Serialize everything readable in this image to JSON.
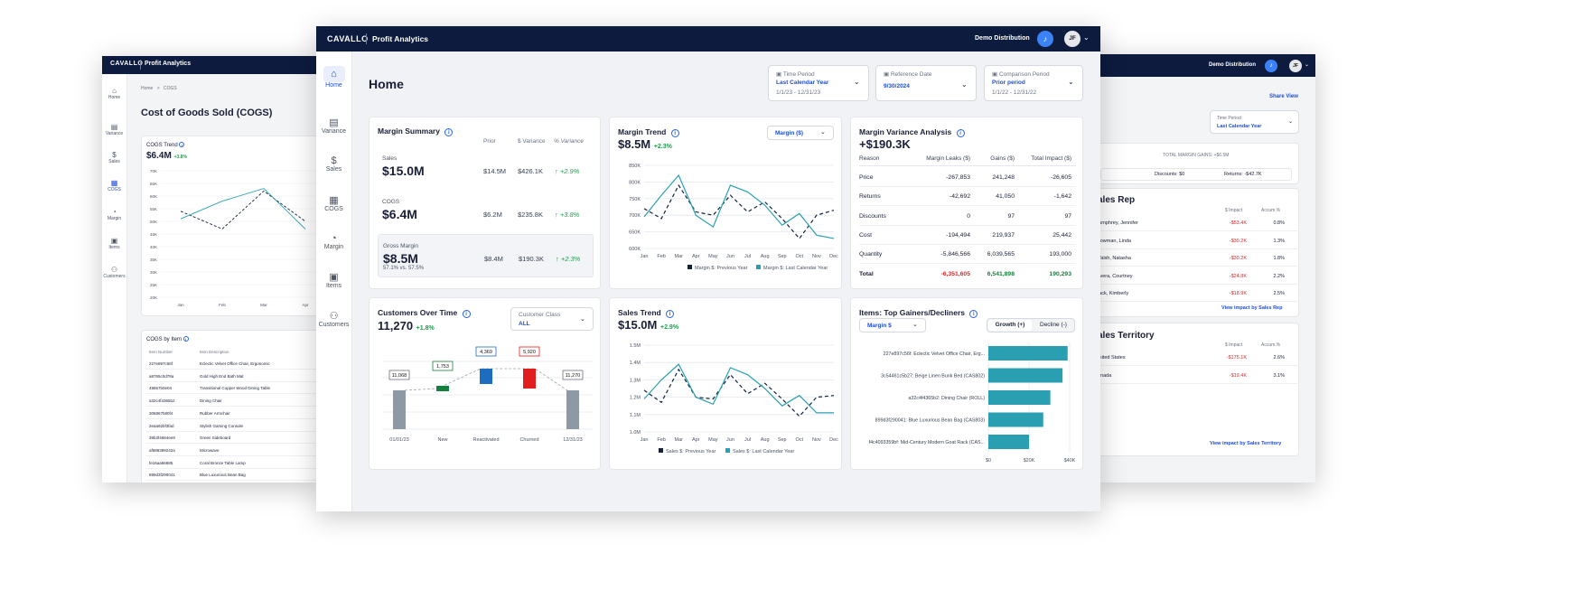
{
  "brand": {
    "logo": "CAVALLO",
    "app": "Profit Analytics",
    "company": "Demo Distribution",
    "user_initials": "JF"
  },
  "nav": {
    "home": "Home",
    "variance": "Variance",
    "sales": "Sales",
    "cogs": "COGS",
    "margin": "Margin",
    "items": "Items",
    "customers": "Customers"
  },
  "left": {
    "breadcrumb_home": "Home",
    "breadcrumb_sep": ">",
    "breadcrumb_page": "COGS",
    "title": "Cost of Goods Sold (COGS)",
    "trend": {
      "title": "COGS Trend",
      "value": "$6.4M",
      "change": "+3.8%",
      "y_ticks": [
        "70K",
        "65K",
        "60K",
        "55K",
        "50K",
        "45K",
        "40K",
        "35K",
        "30K",
        "25K",
        "20K"
      ],
      "x_ticks": [
        "Jan",
        "Feb",
        "Mar",
        "Apr"
      ]
    },
    "by_item": {
      "title": "COGS by Item",
      "col_num": "Item Number",
      "col_desc": "Item Description",
      "rows": [
        {
          "num": "227e897c56f",
          "desc": "Eclectic Velvet Office Chair, Ergonomic"
        },
        {
          "num": "a8765c0d78a",
          "desc": "Gold High End Bath Mat"
        },
        {
          "num": "49667b0e04",
          "desc": "Transitional Copper Wood Dining Table"
        },
        {
          "num": "a32c4f4365b2",
          "desc": "Dining Chair"
        },
        {
          "num": "306867b80f4",
          "desc": "Rubber Armchair"
        },
        {
          "num": "2eaa92bf3fad",
          "desc": "Stylish Gaming Console"
        },
        {
          "num": "39b3f4684ee9",
          "desc": "Green Sideboard"
        },
        {
          "num": "af688389242a",
          "desc": "Microwave"
        },
        {
          "num": "fe16aa56685",
          "desc": "Coral Bronze Table Lamp"
        },
        {
          "num": "899d3f290041",
          "desc": "Blue Luxurious Bean Bag"
        }
      ]
    }
  },
  "main": {
    "page_title": "Home",
    "time_period": {
      "label": "Time Period",
      "value": "Last Calendar Year",
      "range": "1/1/23 - 12/31/23"
    },
    "reference_date": {
      "label": "Reference Date",
      "value": "9/30/2024"
    },
    "comparison": {
      "label": "Comparison Period",
      "value": "Prior period",
      "range": "1/1/22 - 12/31/22"
    },
    "margin_summary": {
      "title": "Margin Summary",
      "col_prior": "Prior",
      "col_var": "$ Variance",
      "col_pct": "% Variance",
      "rows": [
        {
          "label": "Sales",
          "value": "$15.0M",
          "prior": "$14.5M",
          "var": "$426.1K",
          "pct": "+2.9%"
        },
        {
          "label": "COGS",
          "value": "$6.4M",
          "prior": "$6.2M",
          "var": "$235.8K",
          "pct": "+3.8%"
        },
        {
          "label": "Gross Margin",
          "value": "$8.5M",
          "sub": "57.1% vs. 57.5%",
          "prior": "$8.4M",
          "var": "$190.3K",
          "pct": "+2.3%"
        }
      ]
    },
    "margin_trend": {
      "title": "Margin Trend",
      "value": "$8.5M",
      "change": "+2.3%",
      "select": "Margin ($)",
      "legend_prev": "Margin $: Previous Year",
      "legend_cur": "Margin $: Last Calendar Year"
    },
    "variance": {
      "title": "Margin Variance Analysis",
      "value": "+$190.3K",
      "cols": [
        "Reason",
        "Margin Leaks ($)",
        "Gains ($)",
        "Total Impact ($)"
      ],
      "rows": [
        {
          "reason": "Price",
          "leaks": "-267,853",
          "gains": "241,248",
          "total": "-26,605"
        },
        {
          "reason": "Returns",
          "leaks": "-42,692",
          "gains": "41,050",
          "total": "-1,642"
        },
        {
          "reason": "Discounts",
          "leaks": "0",
          "gains": "97",
          "total": "97"
        },
        {
          "reason": "Cost",
          "leaks": "-194,494",
          "gains": "219,937",
          "total": "25,442"
        },
        {
          "reason": "Quantity",
          "leaks": "-5,846,566",
          "gains": "6,039,565",
          "total": "193,000"
        },
        {
          "reason": "Total",
          "leaks": "-6,351,605",
          "gains": "6,541,898",
          "total": "190,293"
        }
      ]
    },
    "customers": {
      "title": "Customers Over Time",
      "value": "11,270",
      "change": "+1.8%",
      "class_label": "Customer Class",
      "class_value": "ALL",
      "bars": [
        {
          "label": "01/01/23",
          "value": "11,068"
        },
        {
          "label": "New",
          "value": "1,753"
        },
        {
          "label": "Reactivated",
          "value": "4,369"
        },
        {
          "label": "Churned",
          "value": "5,920"
        },
        {
          "label": "12/31/23",
          "value": "11,270"
        }
      ]
    },
    "sales_trend": {
      "title": "Sales Trend",
      "value": "$15.0M",
      "change": "+2.9%",
      "legend_prev": "Sales $: Previous Year",
      "legend_cur": "Sales $: Last Calendar Year"
    },
    "items": {
      "title": "Items: Top Gainers/Decliners",
      "select": "Margin $",
      "tab_growth": "Growth (+)",
      "tab_decline": "Decline (-)",
      "rows": [
        {
          "label": "227e897c56f: Eclectic Velvet Office Chair, Erg...",
          "value": 39
        },
        {
          "label": "3c54461c5b27: Beige Linen Bunk Bed (CAS802)",
          "value": 36.5
        },
        {
          "label": "a32c4f4365b2: Dining Chair (ROLL)",
          "value": 30.5
        },
        {
          "label": "899d3f290041: Blue Luxurious Bean Bag (CAS803)",
          "value": 27
        },
        {
          "label": "f4c4093359bf: Mid-Century Modern Goat Rack (CAS...",
          "value": 20
        }
      ],
      "x_ticks": [
        "$0",
        "$20K",
        "$40K"
      ]
    }
  },
  "right": {
    "share_view": "Share View",
    "time_period": {
      "label": "Time Period",
      "value": "Last Calendar Year"
    },
    "total_gains": "TOTAL MARGIN GAINS: +$6.5M",
    "discounts": "Discounts: $0",
    "returns": "Returns: -$42.7K",
    "sales_rep": {
      "title": "ales Rep",
      "col_impact": "$ Impact",
      "col_accum": "Accum.%",
      "rows": [
        {
          "name": "lumphrey, Jennifer",
          "impact": "-$53.4K",
          "accum": "0.8%"
        },
        {
          "name": "Jowman, Linda",
          "impact": "-$30.2K",
          "accum": "1.3%"
        },
        {
          "name": "Valsh, Natasha",
          "impact": "-$30.2K",
          "accum": "1.8%"
        },
        {
          "name": "livera, Courtney",
          "impact": "-$24.8K",
          "accum": "2.2%"
        },
        {
          "name": "lack, Kimberly",
          "impact": "-$18.9K",
          "accum": "2.5%"
        }
      ],
      "link": "View impact by Sales Rep"
    },
    "territory": {
      "title": "ales Territory",
      "col_impact": "$ Impact",
      "col_accum": "Accum.%",
      "rows": [
        {
          "name": "Inited States",
          "impact": "-$175.1K",
          "accum": "2.6%"
        },
        {
          "name": "anada",
          "impact": "-$19.4K",
          "accum": "3.1%"
        }
      ],
      "link": "View impact by Sales Territory"
    }
  },
  "chart_data": [
    {
      "type": "line",
      "title": "COGS Trend",
      "x": [
        "Jan",
        "Feb",
        "Mar",
        "Apr"
      ],
      "series": [
        {
          "values": [
            51000,
            58000,
            63000,
            47000
          ]
        },
        {
          "values": [
            54000,
            47000,
            62000,
            50000
          ]
        }
      ]
    },
    {
      "type": "line",
      "title": "Margin Trend",
      "x": [
        "Jan",
        "Feb",
        "Mar",
        "Apr",
        "May",
        "Jun",
        "Jul",
        "Aug",
        "Sep",
        "Oct",
        "Nov",
        "Dec"
      ],
      "ylim": [
        600000,
        850000
      ],
      "y_ticks": [
        "850K",
        "800K",
        "750K",
        "700K",
        "650K",
        "600K"
      ],
      "series": [
        {
          "name": "Margin $: Previous Year",
          "values": [
            720000,
            690000,
            790000,
            710000,
            700000,
            760000,
            710000,
            740000,
            690000,
            630000,
            700000,
            715000
          ]
        },
        {
          "name": "Margin $: Last Calendar Year",
          "values": [
            695000,
            760000,
            820000,
            700000,
            665000,
            790000,
            770000,
            730000,
            670000,
            705000,
            640000,
            630000
          ]
        }
      ]
    },
    {
      "type": "line",
      "title": "Sales Trend",
      "x": [
        "Jan",
        "Feb",
        "Mar",
        "Apr",
        "May",
        "Jun",
        "Jul",
        "Aug",
        "Sep",
        "Oct",
        "Nov",
        "Dec"
      ],
      "ylim": [
        1000000,
        1500000
      ],
      "y_ticks": [
        "1.5M",
        "1.4M",
        "1.3M",
        "1.2M",
        "1.1M",
        "1.0M"
      ],
      "series": [
        {
          "name": "Sales $: Previous Year",
          "values": [
            1240000,
            1170000,
            1360000,
            1200000,
            1190000,
            1330000,
            1220000,
            1280000,
            1190000,
            1090000,
            1200000,
            1210000
          ]
        },
        {
          "name": "Sales $: Last Calendar Year",
          "values": [
            1190000,
            1300000,
            1390000,
            1200000,
            1160000,
            1370000,
            1330000,
            1250000,
            1150000,
            1210000,
            1110000,
            1110000
          ]
        }
      ]
    },
    {
      "type": "bar",
      "title": "Items: Top Gainers/Decliners",
      "categories": [
        "227e897c56f",
        "3c54461c5b27",
        "a32c4f4365b2",
        "899d3f290041",
        "f4c4093359bf"
      ],
      "values": [
        39000,
        36500,
        30500,
        27000,
        20000
      ],
      "xlim": [
        0,
        40000
      ]
    }
  ],
  "colors": {
    "navy": "#0d1b3e",
    "teal": "#2a9fb1",
    "dash": "#10223f",
    "green_bar": "#15803d",
    "blue_bar": "#1e6cc0",
    "red_bar": "#e11d1d",
    "gray_bar": "#8f99a6",
    "accent": "#2563eb"
  }
}
